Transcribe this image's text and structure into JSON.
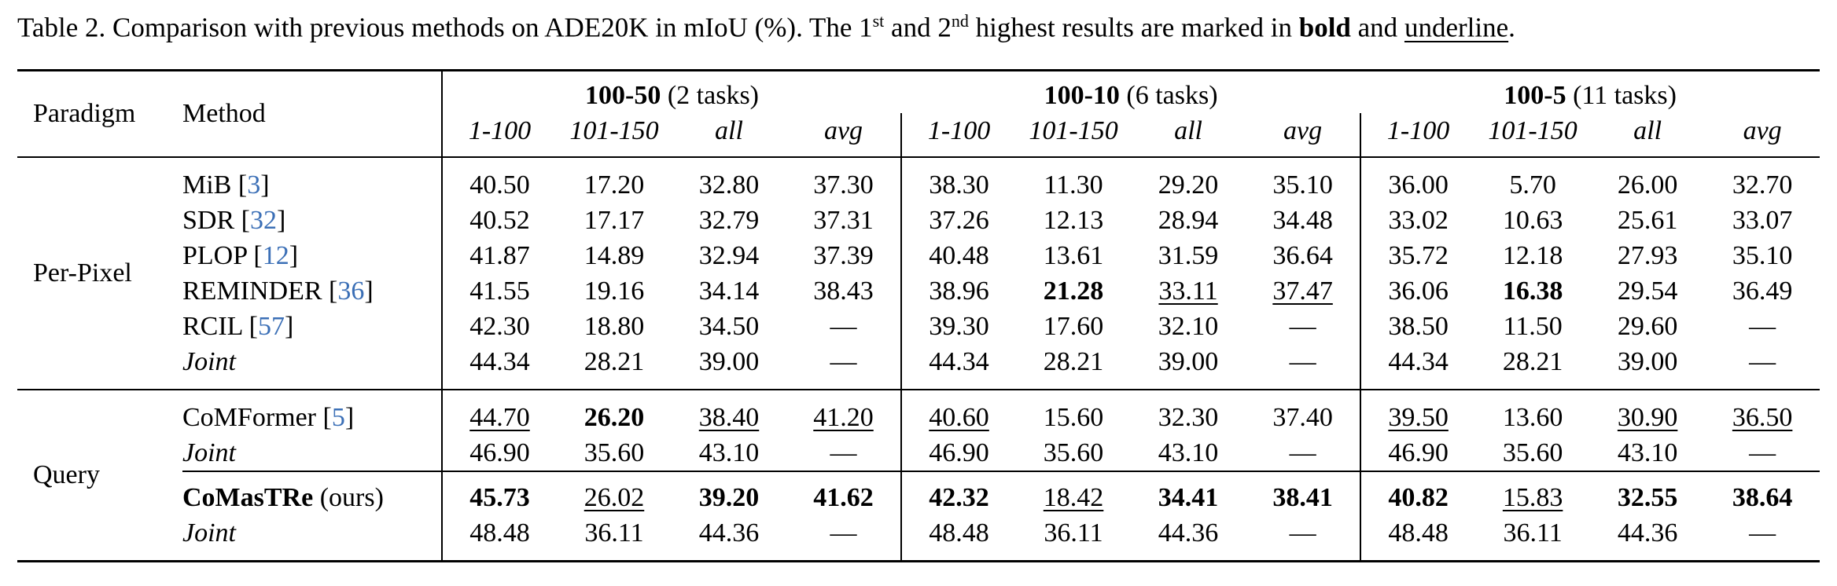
{
  "caption": [
    "Table 2. Comparison with previous methods on ADE20K in mIoU (%). The 1",
    {
      "text": "st",
      "style": "sup"
    },
    " and 2",
    {
      "text": "nd",
      "style": "sup"
    },
    " highest results are marked in ",
    {
      "text": "bold",
      "style": "bold"
    },
    " and ",
    {
      "text": "underline",
      "style": "underline"
    },
    "."
  ],
  "table": {
    "header": {
      "paradigm": "Paradigm",
      "method": "Method",
      "groups": [
        {
          "title": [
            {
              "text": "100-50",
              "style": "bold"
            },
            " (2 tasks)"
          ],
          "columns": [
            "1-100",
            "101-150",
            "all",
            "avg"
          ]
        },
        {
          "title": [
            {
              "text": "100-10",
              "style": "bold"
            },
            " (6 tasks)"
          ],
          "columns": [
            "1-100",
            "101-150",
            "all",
            "avg"
          ]
        },
        {
          "title": [
            {
              "text": "100-5",
              "style": "bold"
            },
            " (11 tasks)"
          ],
          "columns": [
            "1-100",
            "101-150",
            "all",
            "avg"
          ]
        }
      ]
    },
    "groups": [
      {
        "paradigm": "Per-Pixel",
        "rows": [
          {
            "method": [
              "MiB [",
              {
                "text": "3",
                "style": "link"
              },
              "]"
            ],
            "cells": [
              "40.50",
              "17.20",
              "32.80",
              "37.30",
              "38.30",
              "11.30",
              "29.20",
              "35.10",
              "36.00",
              "5.70",
              "26.00",
              "32.70"
            ]
          },
          {
            "method": [
              "SDR [",
              {
                "text": "32",
                "style": "link"
              },
              "]"
            ],
            "cells": [
              "40.52",
              "17.17",
              "32.79",
              "37.31",
              "37.26",
              "12.13",
              "28.94",
              "34.48",
              "33.02",
              "10.63",
              "25.61",
              "33.07"
            ]
          },
          {
            "method": [
              "PLOP [",
              {
                "text": "12",
                "style": "link"
              },
              "]"
            ],
            "cells": [
              "41.87",
              "14.89",
              "32.94",
              "37.39",
              "40.48",
              "13.61",
              "31.59",
              "36.64",
              "35.72",
              "12.18",
              "27.93",
              "35.10"
            ]
          },
          {
            "method": [
              "REMINDER [",
              {
                "text": "36",
                "style": "link"
              },
              "]"
            ],
            "cells": [
              "41.55",
              "19.16",
              "34.14",
              "38.43",
              "38.96",
              {
                "text": "21.28",
                "style": "bold"
              },
              {
                "text": "33.11",
                "style": "underline"
              },
              {
                "text": "37.47",
                "style": "underline"
              },
              "36.06",
              {
                "text": "16.38",
                "style": "bold"
              },
              "29.54",
              "36.49"
            ]
          },
          {
            "method": [
              "RCIL [",
              {
                "text": "57",
                "style": "link"
              },
              "]"
            ],
            "cells": [
              "42.30",
              "18.80",
              "34.50",
              "—",
              "39.30",
              "17.60",
              "32.10",
              "—",
              "38.50",
              "11.50",
              "29.60",
              "—"
            ]
          },
          {
            "method": [
              {
                "text": "Joint",
                "style": "italic"
              }
            ],
            "cells": [
              "44.34",
              "28.21",
              "39.00",
              "—",
              "44.34",
              "28.21",
              "39.00",
              "—",
              "44.34",
              "28.21",
              "39.00",
              "—"
            ]
          }
        ]
      },
      {
        "paradigm": "Query",
        "rows": [
          {
            "method": [
              "CoMFormer [",
              {
                "text": "5",
                "style": "link"
              },
              "]"
            ],
            "cells": [
              {
                "text": "44.70",
                "style": "underline"
              },
              {
                "text": "26.20",
                "style": "bold"
              },
              {
                "text": "38.40",
                "style": "underline"
              },
              {
                "text": "41.20",
                "style": "underline"
              },
              {
                "text": "40.60",
                "style": "underline"
              },
              "15.60",
              "32.30",
              "37.40",
              {
                "text": "39.50",
                "style": "underline"
              },
              "13.60",
              {
                "text": "30.90",
                "style": "underline"
              },
              {
                "text": "36.50",
                "style": "underline"
              }
            ]
          },
          {
            "method": [
              {
                "text": "Joint",
                "style": "italic"
              }
            ],
            "cells": [
              "46.90",
              "35.60",
              "43.10",
              "—",
              "46.90",
              "35.60",
              "43.10",
              "—",
              "46.90",
              "35.60",
              "43.10",
              "—"
            ]
          },
          {
            "method": [
              {
                "text": "CoMasTRe",
                "style": "bold"
              },
              " (ours)"
            ],
            "cells": [
              {
                "text": "45.73",
                "style": "bold"
              },
              {
                "text": "26.02",
                "style": "underline"
              },
              {
                "text": "39.20",
                "style": "bold"
              },
              {
                "text": "41.62",
                "style": "bold"
              },
              {
                "text": "42.32",
                "style": "bold"
              },
              {
                "text": "18.42",
                "style": "underline"
              },
              {
                "text": "34.41",
                "style": "bold"
              },
              {
                "text": "38.41",
                "style": "bold"
              },
              {
                "text": "40.82",
                "style": "bold"
              },
              {
                "text": "15.83",
                "style": "underline"
              },
              {
                "text": "32.55",
                "style": "bold"
              },
              {
                "text": "38.64",
                "style": "bold"
              }
            ]
          },
          {
            "method": [
              {
                "text": "Joint",
                "style": "italic"
              }
            ],
            "cells": [
              "48.48",
              "36.11",
              "44.36",
              "—",
              "48.48",
              "36.11",
              "44.36",
              "—",
              "48.48",
              "36.11",
              "44.36",
              "—"
            ]
          }
        ]
      }
    ]
  }
}
